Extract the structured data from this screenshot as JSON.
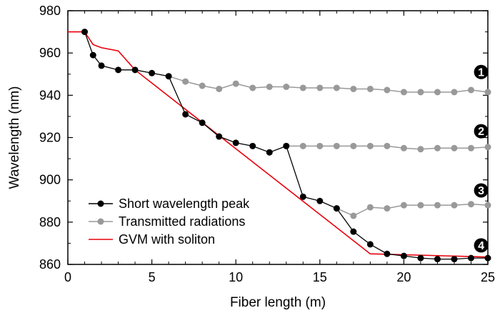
{
  "chart_data": {
    "type": "line",
    "xlabel": "Fiber length (m)",
    "ylabel": "Wavelength (nm)",
    "xlim": [
      0,
      25
    ],
    "ylim": [
      860,
      980
    ],
    "xticks": [
      0,
      5,
      10,
      15,
      20,
      25
    ],
    "yticks": [
      860,
      880,
      900,
      920,
      940,
      960,
      980
    ],
    "legend_position": "bottom-left",
    "grid": false,
    "series": [
      {
        "name": "Short wavelength peak",
        "color": "#000000",
        "marker": "circle",
        "x": [
          1,
          1.5,
          2,
          3,
          4,
          5,
          6,
          7,
          8,
          9,
          10,
          11,
          12,
          13,
          14,
          15,
          16,
          17,
          18,
          19,
          20,
          21,
          22,
          23,
          24,
          25
        ],
        "y": [
          970,
          959,
          954,
          952,
          952,
          950.5,
          949,
          931,
          927,
          920.5,
          917.5,
          916,
          913,
          916,
          892,
          890,
          886.5,
          875.5,
          869.5,
          865,
          864,
          863,
          862.5,
          862.5,
          863,
          863
        ]
      },
      {
        "name": "Transmitted radiations",
        "color": "#999999",
        "marker": "circle",
        "segments": [
          {
            "x": [
              6,
              7,
              8,
              9,
              10,
              11,
              12,
              13,
              14,
              15,
              16,
              17,
              18,
              19,
              20,
              21,
              22,
              23,
              24,
              25
            ],
            "y": [
              949,
              946.5,
              944.5,
              943,
              945.5,
              943.5,
              944,
              944,
              943.5,
              943.5,
              943.5,
              943,
              943,
              942.5,
              941.5,
              941.5,
              941.5,
              941.5,
              942.5,
              941.5
            ]
          },
          {
            "x": [
              13,
              14,
              15,
              16,
              17,
              18,
              19,
              20,
              21,
              22,
              23,
              24,
              25
            ],
            "y": [
              916,
              916,
              916,
              916,
              916,
              916,
              916,
              915,
              914.5,
              915,
              915,
              915,
              915.5
            ]
          },
          {
            "x": [
              16,
              17,
              18,
              19,
              20,
              21,
              22,
              23,
              24,
              25
            ],
            "y": [
              886.5,
              883,
              887,
              886.5,
              888,
              888,
              888,
              888,
              888.5,
              888
            ]
          }
        ]
      },
      {
        "name": "GVM with soliton",
        "color": "#e8000b",
        "marker": "none",
        "x": [
          0,
          1,
          1.5,
          2,
          3,
          4,
          18,
          25
        ],
        "y": [
          970,
          970,
          964,
          962.5,
          961,
          952,
          865,
          863.5
        ]
      }
    ],
    "annotations": [
      {
        "text": "1",
        "x": 24.6,
        "y": 951
      },
      {
        "text": "2",
        "x": 24.6,
        "y": 923
      },
      {
        "text": "3",
        "x": 24.6,
        "y": 895
      },
      {
        "text": "4",
        "x": 24.6,
        "y": 869
      }
    ]
  }
}
